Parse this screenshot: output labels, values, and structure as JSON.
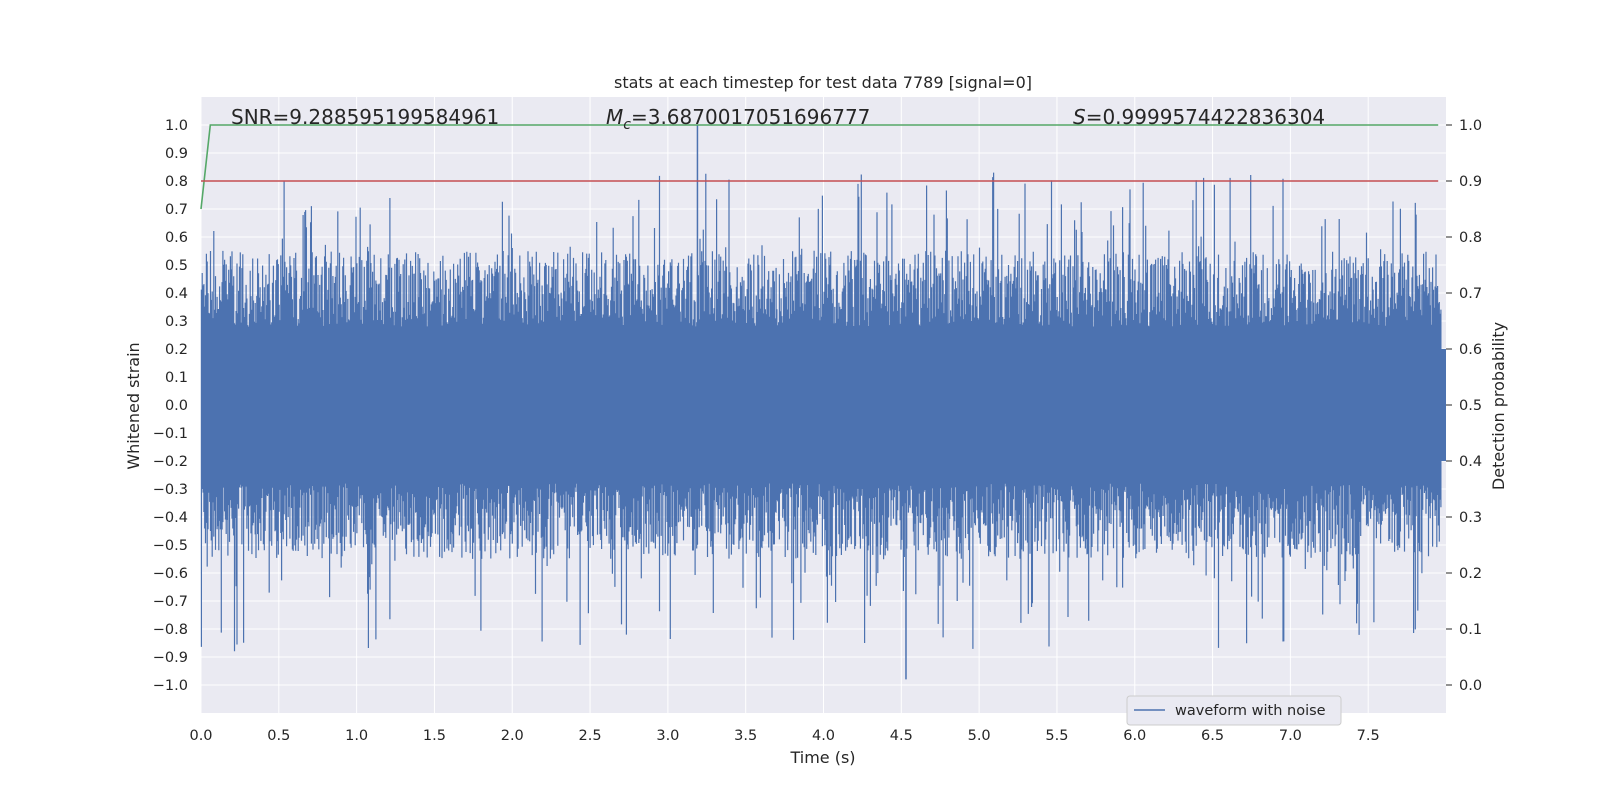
{
  "chart_data": {
    "type": "line",
    "title": "stats at each timestep for test data 7789 [signal=0]",
    "xlabel": "Time (s)",
    "ylabel": "Whitened strain",
    "y2label": "Detection probability",
    "xlim": [
      0.0,
      8.0
    ],
    "ylim": [
      -1.1,
      1.1
    ],
    "y2lim": [
      -0.05,
      1.05
    ],
    "x_ticks": [
      "0.0",
      "0.5",
      "1.0",
      "1.5",
      "2.0",
      "2.5",
      "3.0",
      "3.5",
      "4.0",
      "4.5",
      "5.0",
      "5.5",
      "6.0",
      "6.5",
      "7.0",
      "7.5"
    ],
    "y_ticks": [
      "1.0",
      "0.9",
      "0.8",
      "0.7",
      "0.6",
      "0.5",
      "0.4",
      "0.3",
      "0.2",
      "0.1",
      "0.0",
      "−0.1",
      "−0.2",
      "−0.3",
      "−0.4",
      "−0.5",
      "−0.6",
      "−0.7",
      "−0.8",
      "−0.9",
      "−1.0"
    ],
    "y2_ticks": [
      "1.0",
      "0.9",
      "0.8",
      "0.7",
      "0.6",
      "0.5",
      "0.4",
      "0.3",
      "0.2",
      "0.1",
      "0.0"
    ],
    "grid": true,
    "legend_position": "bottom-right",
    "annotations": {
      "snr": "SNR=9.288595199584961",
      "mc_symbol": "M",
      "mc_subscript": "c",
      "mc_value": "=3.6870017051696777",
      "s_symbol": "S",
      "s_value": "=0.9999574422836304"
    },
    "series": [
      {
        "name": "waveform with noise",
        "axis": "left",
        "color": "#4c72b0",
        "dense_band": [
          -0.2,
          0.2
        ],
        "typical_envelope": [
          -0.55,
          0.55
        ],
        "max_peak": {
          "x": 3.19,
          "y": 1.0
        },
        "min_trough": {
          "x": 4.53,
          "y": -0.98
        }
      },
      {
        "axis": "right",
        "color": "#55a868",
        "x": [
          0.0,
          0.06,
          0.1,
          7.95
        ],
        "values": [
          0.85,
          1.0,
          1.0,
          1.0
        ]
      },
      {
        "axis": "right",
        "color": "#c44e52",
        "x": [
          0.0,
          7.95
        ],
        "values": [
          0.9,
          0.9
        ]
      }
    ]
  },
  "colors": {
    "axes_bg": "#eaeaf2",
    "grid": "#ffffff",
    "waveform": "#4c72b0",
    "probability": "#55a868",
    "threshold": "#c44e52"
  }
}
